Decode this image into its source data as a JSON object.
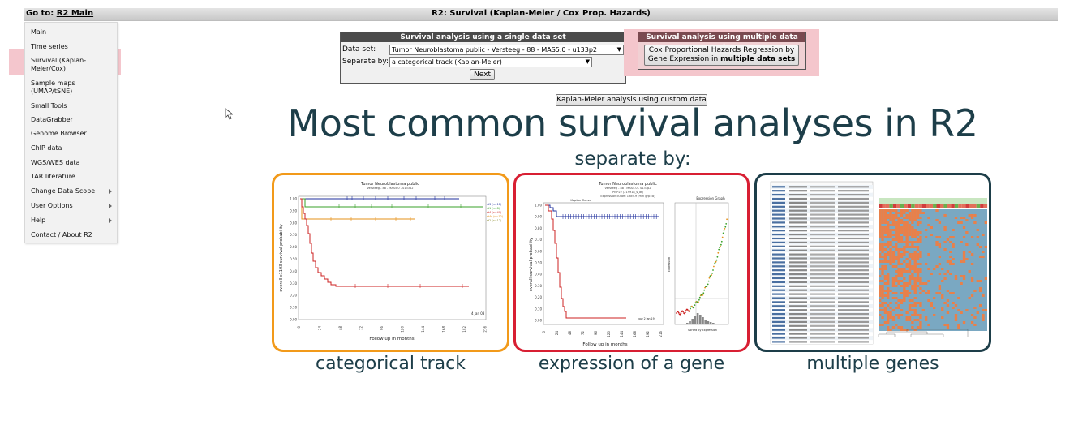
{
  "topbar": {
    "goto_label": "Go to:",
    "goto_link": "R2 Main",
    "title": "R2: Survival (Kaplan-Meier / Cox Prop. Hazards)"
  },
  "menu": {
    "items": [
      {
        "label": "Main"
      },
      {
        "label": "Time series"
      },
      {
        "label": "Survival (Kaplan-\nMeier/Cox)"
      },
      {
        "label": "Sample maps\n(UMAP/tSNE)"
      },
      {
        "label": "Small Tools"
      },
      {
        "label": "DataGrabber"
      },
      {
        "label": "Genome Browser"
      },
      {
        "label": "ChIP data"
      },
      {
        "label": "WGS/WES data"
      },
      {
        "label": "TAR literature"
      },
      {
        "label": "Change Data Scope"
      },
      {
        "label": "User Options"
      },
      {
        "label": "Help"
      },
      {
        "label": "Contact / About R2"
      }
    ]
  },
  "single": {
    "header": "Survival analysis using a single data set",
    "dataset_label": "Data set:",
    "dataset_value": "Tumor Neuroblastoma public - Versteeg - 88 - MAS5.0 - u133p2",
    "separate_label": "Separate by:",
    "separate_value": "a categorical track (Kaplan-Meier)",
    "next_label": "Next"
  },
  "multi": {
    "header": "Survival analysis using multiple data sets",
    "cox_line1": "Cox Proportional Hazards Regression by",
    "cox_line2a": "Gene Expression in ",
    "cox_line2b": "multiple data sets"
  },
  "custom_button": "Kaplan-Meier analysis using custom data",
  "headline": "Most common survival analyses in R2",
  "subheadline": "separate by:",
  "panels": [
    {
      "caption": "categorical track",
      "color": "#f29a1a"
    },
    {
      "caption": "expression of a gene",
      "color": "#d81f33"
    },
    {
      "caption": "multiple genes",
      "color": "#1d3e49"
    }
  ],
  "thumb1": {
    "title": "Tumor Neuroblastoma public",
    "subtitle": "Versteeg - 88 - MAS5.0 - u133p2",
    "ylabel": "overall c1103 survival probability",
    "xlabel": "Follow up in months",
    "yticks": [
      "1.00",
      "0.90",
      "0.80",
      "0.70",
      "0.60",
      "0.50",
      "0.40",
      "0.30",
      "0.20",
      "0.10",
      "0.00"
    ],
    "xticks": [
      "0",
      "24",
      "48",
      "72",
      "96",
      "120",
      "144",
      "168",
      "192",
      "216"
    ],
    "legend": [
      "st3 (n=11)",
      "st1 (n=8)",
      "st4 (n=40)",
      "st4s (n=12)",
      "st2 (n=12)"
    ],
    "note": "4 Jan 08"
  },
  "thumb2": {
    "title": "Tumor Neuroblastoma public",
    "subtitle1": "Versteeg - 88 - MAS5.0 - u133p2",
    "subtitle2": "PMP22 (219918_s_at)",
    "subtitle3": "Expression cutoff: 1389.9 (min grp=8)",
    "curve_label": "Kaplan Curve",
    "ylabel": "overall survival probability",
    "xlabel": "Follow up in months",
    "yticks": [
      "1.00",
      "0.90",
      "0.80",
      "0.70",
      "0.60",
      "0.50",
      "0.40",
      "0.30",
      "0.20",
      "0.10",
      "0.00"
    ],
    "xticks": [
      "0",
      "24",
      "48",
      "72",
      "96",
      "120",
      "144",
      "168",
      "192",
      "216"
    ],
    "expr_title": "Expression Graph",
    "expr_ylabel": "Expression",
    "expr_xlabel": "Sorted by Expression"
  },
  "colors": {
    "headline": "#1d3e49",
    "highlight": "#f2bcc4"
  }
}
